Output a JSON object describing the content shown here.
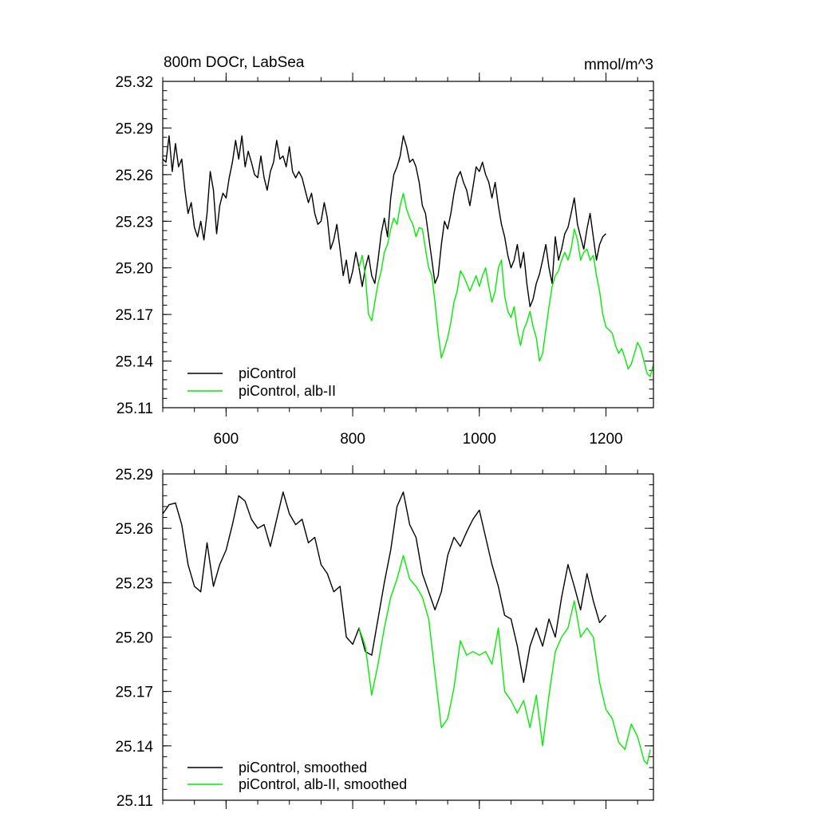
{
  "chart_data": [
    {
      "type": "line",
      "title": "800m DOCr, LabSea",
      "units": "mmol/m^3",
      "xlim": [
        500,
        1275
      ],
      "ylim": [
        25.11,
        25.32
      ],
      "x_ticks": [
        600,
        800,
        1000,
        1200
      ],
      "x_tick_labels": [
        "600",
        "800",
        "1000",
        "1200"
      ],
      "y_ticks": [
        25.11,
        25.14,
        25.17,
        25.2,
        25.23,
        25.26,
        25.29,
        25.32
      ],
      "y_tick_labels": [
        "25.11",
        "25.14",
        "25.17",
        "25.20",
        "25.23",
        "25.26",
        "25.29",
        "25.32"
      ],
      "legend_position": "bottom-left",
      "colors": [
        "#000000",
        "#00ee00"
      ],
      "series": [
        {
          "name": "piControl",
          "color": "#000000",
          "x": [
            500,
            505,
            510,
            515,
            520,
            525,
            530,
            535,
            540,
            545,
            550,
            555,
            560,
            565,
            570,
            575,
            580,
            585,
            590,
            595,
            600,
            605,
            610,
            615,
            620,
            625,
            630,
            635,
            640,
            645,
            650,
            655,
            660,
            665,
            670,
            675,
            680,
            685,
            690,
            695,
            700,
            705,
            710,
            715,
            720,
            725,
            730,
            735,
            740,
            745,
            750,
            755,
            760,
            765,
            770,
            775,
            780,
            785,
            790,
            795,
            800,
            805,
            810,
            815,
            820,
            825,
            830,
            835,
            840,
            845,
            850,
            855,
            860,
            865,
            870,
            875,
            880,
            885,
            890,
            895,
            900,
            905,
            910,
            915,
            920,
            925,
            930,
            935,
            940,
            945,
            950,
            955,
            960,
            965,
            970,
            975,
            980,
            985,
            990,
            995,
            1000,
            1005,
            1010,
            1015,
            1020,
            1025,
            1030,
            1035,
            1040,
            1045,
            1050,
            1055,
            1060,
            1065,
            1070,
            1075,
            1080,
            1085,
            1090,
            1095,
            1100,
            1105,
            1110,
            1115,
            1120,
            1125,
            1130,
            1135,
            1140,
            1145,
            1150,
            1155,
            1160,
            1165,
            1170,
            1175,
            1180,
            1185,
            1190,
            1195,
            1200
          ],
          "values": [
            25.27,
            25.268,
            25.285,
            25.262,
            25.28,
            25.265,
            25.27,
            25.25,
            25.235,
            25.242,
            25.226,
            25.22,
            25.23,
            25.218,
            25.235,
            25.262,
            25.25,
            25.222,
            25.24,
            25.248,
            25.245,
            25.258,
            25.268,
            25.282,
            25.27,
            25.285,
            25.265,
            25.275,
            25.268,
            25.26,
            25.258,
            25.272,
            25.258,
            25.25,
            25.262,
            25.268,
            25.282,
            25.27,
            25.272,
            25.265,
            25.278,
            25.262,
            25.258,
            25.262,
            25.258,
            25.25,
            25.242,
            25.248,
            25.235,
            25.228,
            25.23,
            25.242,
            25.232,
            25.212,
            25.218,
            25.228,
            25.212,
            25.195,
            25.205,
            25.19,
            25.198,
            25.21,
            25.2,
            25.188,
            25.2,
            25.208,
            25.195,
            25.19,
            25.205,
            25.222,
            25.232,
            25.22,
            25.245,
            25.26,
            25.265,
            25.272,
            25.285,
            25.278,
            25.268,
            25.27,
            25.265,
            25.255,
            25.24,
            25.235,
            25.22,
            25.205,
            25.19,
            25.195,
            25.215,
            25.23,
            25.225,
            25.235,
            25.248,
            25.258,
            25.262,
            25.255,
            25.25,
            25.24,
            25.252,
            25.265,
            25.262,
            25.268,
            25.26,
            25.255,
            25.245,
            25.255,
            25.24,
            25.228,
            25.22,
            25.208,
            25.2,
            25.205,
            25.215,
            25.2,
            25.21,
            25.19,
            25.175,
            25.18,
            25.19,
            25.196,
            25.205,
            25.215,
            25.2,
            25.19,
            25.22,
            25.205,
            25.212,
            25.222,
            25.226,
            25.235,
            25.245,
            25.228,
            25.22,
            25.212,
            25.225,
            25.235,
            25.22,
            25.205,
            25.215,
            25.22,
            25.222
          ]
        },
        {
          "name": "piControl, alb-II",
          "color": "#00ee00",
          "x": [
            810,
            815,
            820,
            825,
            830,
            835,
            840,
            845,
            850,
            855,
            860,
            865,
            870,
            875,
            880,
            885,
            890,
            895,
            900,
            905,
            910,
            915,
            920,
            925,
            930,
            935,
            940,
            945,
            950,
            955,
            960,
            965,
            970,
            975,
            980,
            985,
            990,
            995,
            1000,
            1005,
            1010,
            1015,
            1020,
            1025,
            1030,
            1035,
            1040,
            1045,
            1050,
            1055,
            1060,
            1065,
            1070,
            1075,
            1080,
            1085,
            1090,
            1095,
            1100,
            1105,
            1110,
            1115,
            1120,
            1125,
            1130,
            1135,
            1140,
            1145,
            1150,
            1155,
            1160,
            1165,
            1170,
            1175,
            1180,
            1185,
            1190,
            1195,
            1200,
            1205,
            1210,
            1215,
            1220,
            1225,
            1230,
            1235,
            1240,
            1245,
            1250,
            1255,
            1260,
            1265,
            1270,
            1275
          ],
          "values": [
            25.2,
            25.208,
            25.195,
            25.17,
            25.166,
            25.178,
            25.19,
            25.198,
            25.21,
            25.215,
            25.225,
            25.232,
            25.228,
            25.24,
            25.248,
            25.238,
            25.232,
            25.228,
            25.22,
            25.226,
            25.225,
            25.212,
            25.2,
            25.195,
            25.178,
            25.158,
            25.142,
            25.148,
            25.155,
            25.165,
            25.178,
            25.185,
            25.198,
            25.195,
            25.19,
            25.185,
            25.19,
            25.195,
            25.188,
            25.195,
            25.2,
            25.188,
            25.178,
            25.185,
            25.2,
            25.205,
            25.182,
            25.172,
            25.168,
            25.175,
            25.16,
            25.15,
            25.16,
            25.165,
            25.172,
            25.162,
            25.155,
            25.14,
            25.145,
            25.16,
            25.175,
            25.188,
            25.195,
            25.198,
            25.205,
            25.21,
            25.205,
            25.212,
            25.225,
            25.218,
            25.205,
            25.21,
            25.212,
            25.205,
            25.208,
            25.195,
            25.185,
            25.17,
            25.162,
            25.16,
            25.158,
            25.15,
            25.145,
            25.148,
            25.142,
            25.135,
            25.138,
            25.145,
            25.152,
            25.148,
            25.14,
            25.132,
            25.13,
            25.138
          ]
        }
      ]
    },
    {
      "type": "line",
      "title": "",
      "xlim": [
        500,
        1275
      ],
      "ylim": [
        25.11,
        25.29
      ],
      "x_ticks": [
        600,
        800,
        1000,
        1200
      ],
      "y_ticks": [
        25.11,
        25.14,
        25.17,
        25.2,
        25.23,
        25.26,
        25.29
      ],
      "y_tick_labels": [
        "25.11",
        "25.14",
        "25.17",
        "25.20",
        "25.23",
        "25.26",
        "25.29"
      ],
      "legend_position": "bottom-left",
      "colors": [
        "#000000",
        "#00ee00"
      ],
      "series": [
        {
          "name": "piControl, smoothed",
          "color": "#000000",
          "x": [
            500,
            510,
            520,
            530,
            540,
            550,
            560,
            570,
            580,
            590,
            600,
            610,
            620,
            630,
            640,
            650,
            660,
            670,
            680,
            690,
            700,
            710,
            720,
            730,
            740,
            750,
            760,
            770,
            780,
            790,
            800,
            810,
            820,
            830,
            840,
            850,
            860,
            870,
            880,
            890,
            900,
            910,
            920,
            930,
            940,
            950,
            960,
            970,
            980,
            990,
            1000,
            1010,
            1020,
            1030,
            1040,
            1050,
            1060,
            1070,
            1080,
            1090,
            1100,
            1110,
            1120,
            1130,
            1140,
            1150,
            1160,
            1170,
            1180,
            1190,
            1200
          ],
          "values": [
            25.268,
            25.273,
            25.274,
            25.262,
            25.24,
            25.228,
            25.225,
            25.252,
            25.228,
            25.24,
            25.248,
            25.262,
            25.278,
            25.275,
            25.265,
            25.26,
            25.262,
            25.25,
            25.265,
            25.28,
            25.268,
            25.262,
            25.265,
            25.252,
            25.255,
            25.24,
            25.235,
            25.225,
            25.228,
            25.2,
            25.196,
            25.205,
            25.192,
            25.19,
            25.21,
            25.23,
            25.248,
            25.272,
            25.28,
            25.262,
            25.255,
            25.235,
            25.225,
            25.215,
            25.225,
            25.245,
            25.255,
            25.25,
            25.258,
            25.265,
            25.27,
            25.255,
            25.24,
            25.228,
            25.212,
            25.21,
            25.195,
            25.175,
            25.195,
            25.205,
            25.195,
            25.21,
            25.2,
            25.222,
            25.24,
            25.228,
            25.215,
            25.235,
            25.22,
            25.208,
            25.212
          ]
        },
        {
          "name": "piControl, alb-II, smoothed",
          "color": "#00ee00",
          "x": [
            810,
            820,
            830,
            840,
            850,
            860,
            870,
            880,
            890,
            900,
            910,
            920,
            930,
            940,
            950,
            960,
            970,
            980,
            990,
            1000,
            1010,
            1020,
            1030,
            1040,
            1050,
            1060,
            1070,
            1080,
            1090,
            1100,
            1110,
            1120,
            1130,
            1140,
            1150,
            1160,
            1170,
            1180,
            1190,
            1200,
            1210,
            1220,
            1230,
            1240,
            1250,
            1260,
            1265,
            1270
          ],
          "values": [
            25.205,
            25.195,
            25.168,
            25.185,
            25.205,
            25.222,
            25.232,
            25.245,
            25.232,
            25.228,
            25.222,
            25.21,
            25.18,
            25.15,
            25.155,
            25.172,
            25.198,
            25.19,
            25.192,
            25.19,
            25.192,
            25.185,
            25.205,
            25.17,
            25.165,
            25.158,
            25.165,
            25.15,
            25.168,
            25.14,
            25.168,
            25.192,
            25.2,
            25.205,
            25.22,
            25.2,
            25.205,
            25.2,
            25.175,
            25.16,
            25.155,
            25.142,
            25.138,
            25.152,
            25.145,
            25.132,
            25.13,
            25.138
          ]
        }
      ]
    }
  ]
}
